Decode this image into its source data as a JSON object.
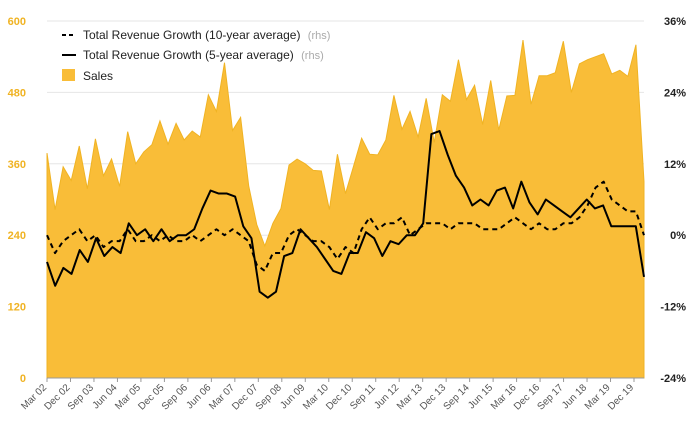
{
  "chart_data": {
    "type": "area",
    "title": "",
    "x_tick_labels": [
      "Mar 02",
      "Dec 02",
      "Sep 03",
      "Jun 04",
      "Mar 05",
      "Dec 05",
      "Sep 06",
      "Jun 06",
      "Mar 07",
      "Dec 07",
      "Sep 08",
      "Jun 09",
      "Mar 10",
      "Dec 10",
      "Sep 11",
      "Jun 12",
      "Mar 13",
      "Dec 13",
      "Sep 14",
      "Jun 15",
      "Mar 16",
      "Dec 16",
      "Sep 17",
      "Jun 18",
      "Mar 19",
      "Dec 19"
    ],
    "y_left": {
      "ticks": [
        0,
        120,
        240,
        360,
        480,
        600
      ],
      "range": [
        0,
        600
      ]
    },
    "y_right": {
      "ticks": [
        "-24%",
        "-12%",
        "0%",
        "12%",
        "24%",
        "36%"
      ],
      "range": [
        -24,
        36
      ]
    },
    "legend": {
      "placement": "top-left"
    },
    "colors": {
      "sales": "#f9bd38",
      "sales_edge": "#f0b323",
      "growth": "#000000"
    },
    "series": [
      {
        "name": "Sales",
        "axis": "left",
        "style": "area",
        "values": [
          378,
          283,
          355,
          332,
          390,
          318,
          402,
          340,
          368,
          322,
          414,
          360,
          380,
          392,
          432,
          393,
          428,
          400,
          415,
          405,
          476,
          448,
          530,
          416,
          438,
          323,
          258,
          222,
          260,
          285,
          358,
          368,
          360,
          349,
          348,
          283,
          376,
          310,
          356,
          403,
          376,
          375,
          400,
          475,
          418,
          448,
          405,
          470,
          396,
          476,
          465,
          535,
          468,
          492,
          426,
          500,
          417,
          474,
          475,
          568,
          460,
          508,
          508,
          513,
          566,
          480,
          528,
          535,
          540,
          545,
          511,
          517,
          507,
          560,
          330
        ]
      },
      {
        "name": "Total Revenue Growth (10-year average)",
        "legend_suffix": "(rhs)",
        "axis": "right",
        "style": "dashed",
        "values": [
          0,
          -3,
          -1,
          0,
          1,
          -1,
          0,
          -2,
          -1,
          -1,
          1,
          -1,
          -1,
          0,
          -1,
          0,
          -1,
          -1,
          0,
          -1,
          0,
          1,
          0,
          1,
          0,
          -1,
          -5,
          -6,
          -3,
          -3,
          0,
          1,
          0,
          -1,
          -1,
          -2,
          -4,
          -2,
          -3,
          1,
          3,
          1,
          2,
          2,
          3,
          0,
          1,
          2,
          2,
          2,
          1,
          2,
          2,
          2,
          1,
          1,
          1,
          2,
          3,
          2,
          1,
          2,
          1,
          1,
          2,
          2,
          3,
          5,
          8,
          9,
          6,
          5,
          4,
          4,
          0
        ]
      },
      {
        "name": "Total Revenue Growth (5-year average)",
        "legend_suffix": "(rhs)",
        "axis": "right",
        "style": "solid",
        "values": [
          -4.5,
          -8.5,
          -5.5,
          -6.5,
          -2.5,
          -4.5,
          -0.5,
          -3.5,
          -2,
          -3,
          2,
          0,
          1,
          -1,
          1,
          -1,
          0,
          0,
          1,
          4.5,
          7.5,
          7,
          7,
          6.5,
          1.5,
          -0.5,
          -9.5,
          -10.5,
          -9.5,
          -3.5,
          -3,
          1,
          -0.5,
          -2,
          -4,
          -6,
          -6.5,
          -3,
          -3,
          0.5,
          -0.5,
          -3.5,
          -1,
          -1.5,
          0,
          0,
          2,
          17,
          17.5,
          13.5,
          10,
          8,
          5,
          6,
          5,
          7.5,
          8,
          4.5,
          9,
          5.5,
          3.5,
          6,
          5,
          4,
          3,
          4.5,
          6,
          4.5,
          5,
          1.5,
          1.5,
          1.5,
          1.5,
          -7
        ]
      }
    ]
  }
}
